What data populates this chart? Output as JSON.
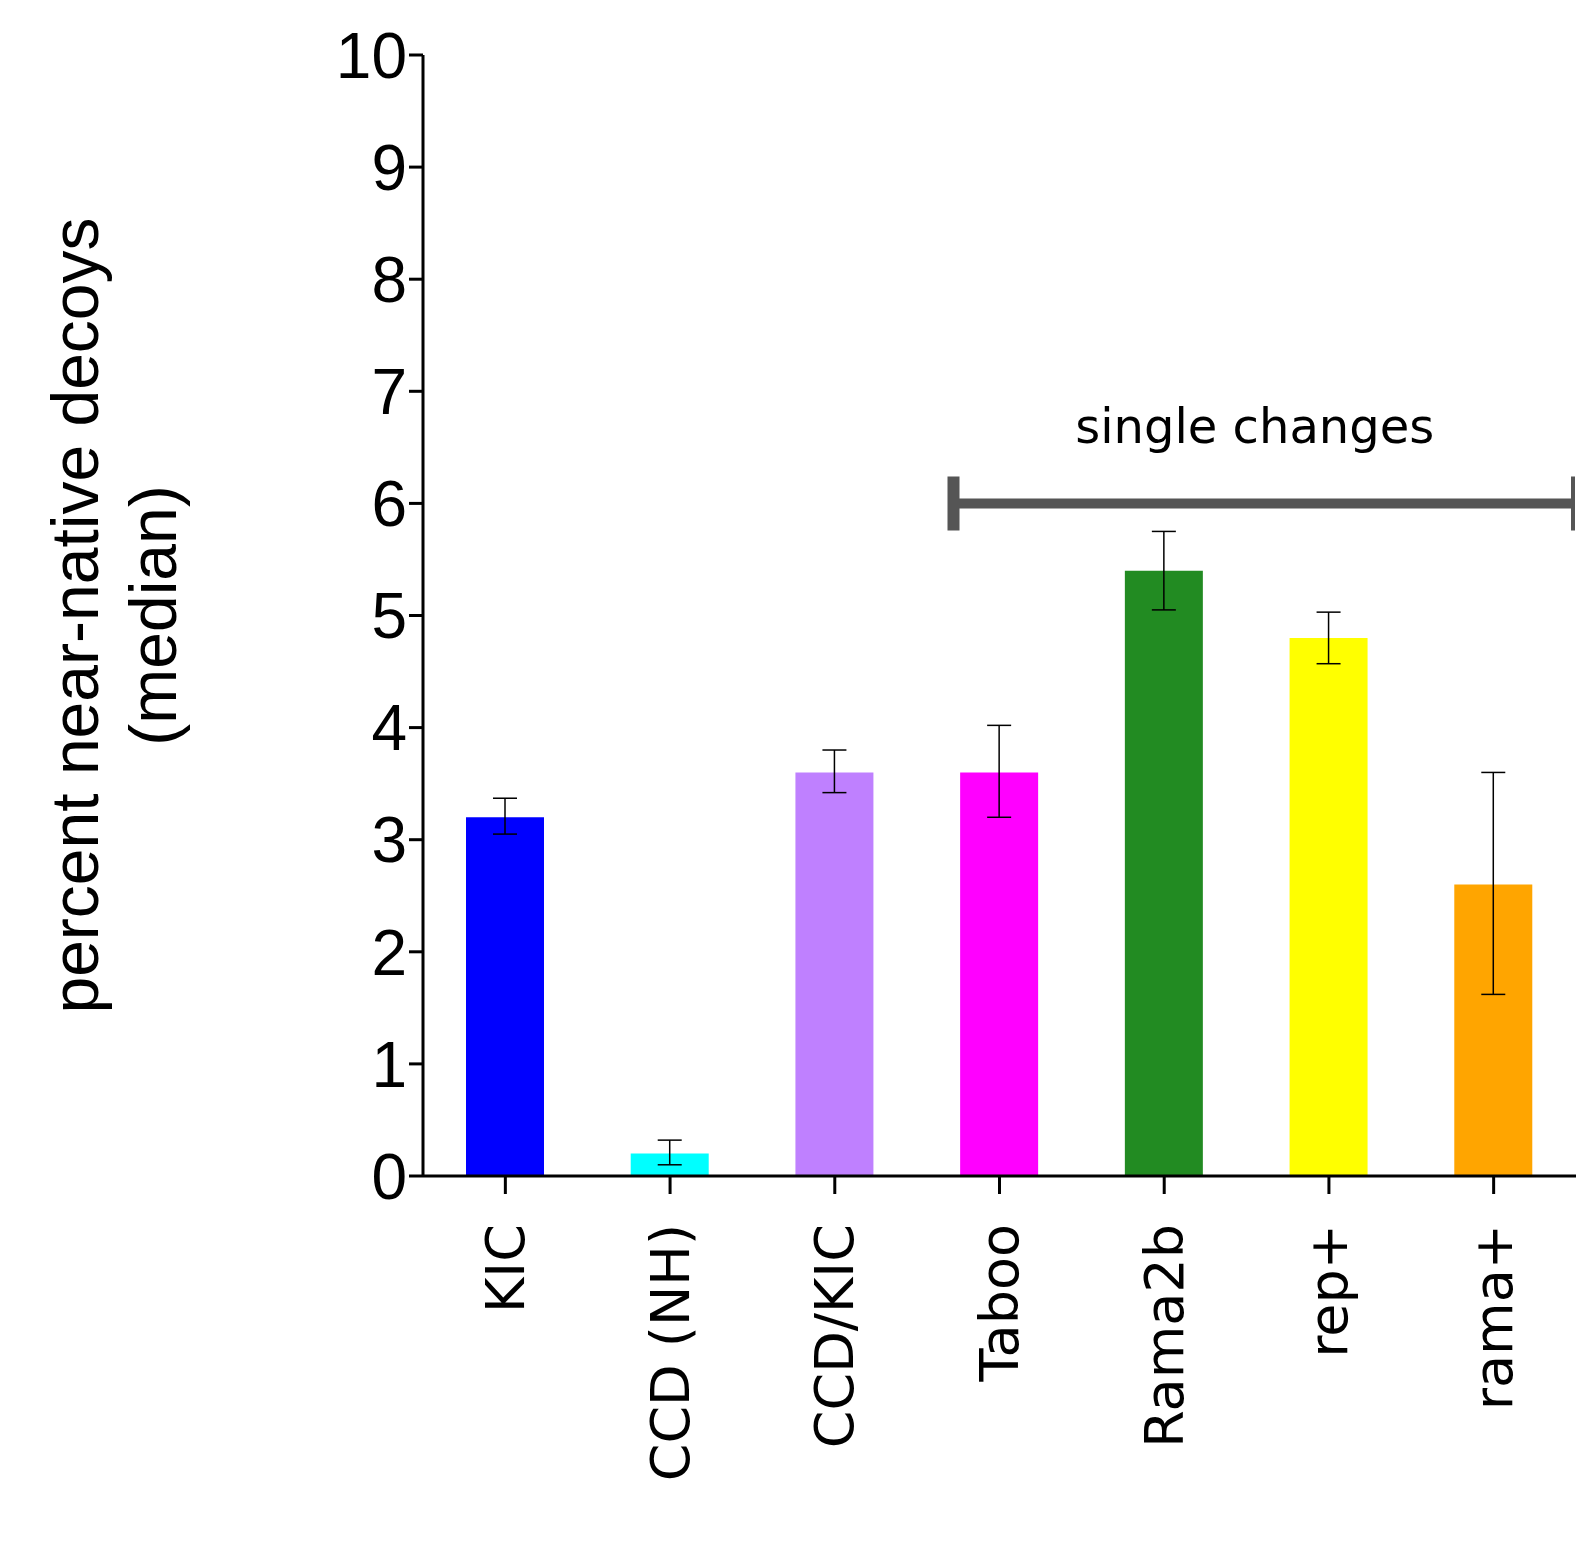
{
  "chart_data": {
    "type": "bar",
    "ylabel": "percent near-native decoys\n(median)",
    "categories": [
      "KIC",
      "CCD (NH)",
      "CCD/KIC",
      "Taboo",
      "Rama2b",
      "rep+",
      "rama+"
    ],
    "values": [
      3.2,
      0.2,
      3.6,
      3.6,
      5.4,
      4.8,
      2.6
    ],
    "colors": [
      "#0000ff",
      "#00ffff",
      "#bf80ff",
      "#ff00ff",
      "#228b22",
      "#ffff00",
      "#ffa500"
    ],
    "errors": [
      [
        3.05,
        3.37
      ],
      [
        0.1,
        0.32
      ],
      [
        3.42,
        3.8
      ],
      [
        3.2,
        4.02
      ],
      [
        5.05,
        5.75
      ],
      [
        4.57,
        5.03
      ],
      [
        1.62,
        3.6
      ]
    ],
    "ylim": [
      0,
      10
    ],
    "yticks": [
      0,
      1,
      2,
      3,
      4,
      5,
      6,
      7,
      8,
      9,
      10
    ],
    "annotations": [
      "single changes"
    ]
  }
}
